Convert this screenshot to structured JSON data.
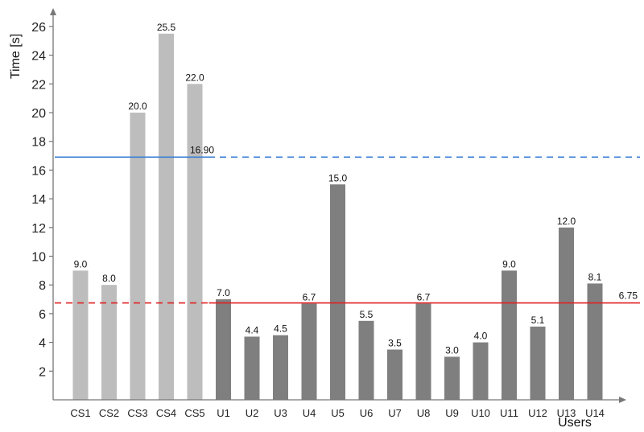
{
  "chart_data": {
    "type": "bar",
    "ylabel": "Time [s]",
    "xlabel": "Users",
    "ylim": [
      0,
      27
    ],
    "yticks": [
      2,
      4,
      6,
      8,
      10,
      12,
      14,
      16,
      18,
      20,
      22,
      24,
      26
    ],
    "grid": false,
    "categories": [
      "CS1",
      "CS2",
      "CS3",
      "CS4",
      "CS5",
      "U1",
      "U2",
      "U3",
      "U4",
      "U5",
      "U6",
      "U7",
      "U8",
      "U9",
      "U10",
      "U11",
      "U12",
      "U13",
      "U14"
    ],
    "values": [
      9.0,
      8.0,
      20.0,
      25.5,
      22.0,
      7.0,
      4.4,
      4.5,
      6.7,
      15.0,
      5.5,
      3.5,
      6.7,
      3.0,
      4.0,
      9.0,
      5.1,
      12.0,
      8.1
    ],
    "value_labels": [
      "9.0",
      "8.0",
      "20.0",
      "25.5",
      "22.0",
      "7.0",
      "4.4",
      "4.5",
      "6.7",
      "15.0",
      "5.5",
      "3.5",
      "6.7",
      "3.0",
      "4.0",
      "9.0",
      "5.1",
      "12.0",
      "8.1"
    ],
    "groups": [
      {
        "categories": [
          "CS1",
          "CS2",
          "CS3",
          "CS4",
          "CS5"
        ],
        "color": "#bdbdbd"
      },
      {
        "categories": [
          "U1",
          "U2",
          "U3",
          "U4",
          "U5",
          "U6",
          "U7",
          "U8",
          "U9",
          "U10",
          "U11",
          "U12",
          "U13",
          "U14"
        ],
        "color": "#7f7f7f"
      }
    ],
    "reference_lines": [
      {
        "value": 16.9,
        "label": "16.90",
        "color": "#3a7fd5",
        "solid_span": [
          "CS1",
          "CS5"
        ],
        "dashed_span": [
          "U1",
          "U14"
        ],
        "label_at": "CS5"
      },
      {
        "value": 6.75,
        "label": "6.75",
        "color": "#e02020",
        "dashed_span": [
          "CS1",
          "CS5"
        ],
        "solid_span": [
          "U1",
          "U14"
        ],
        "label_at": "end"
      }
    ]
  }
}
